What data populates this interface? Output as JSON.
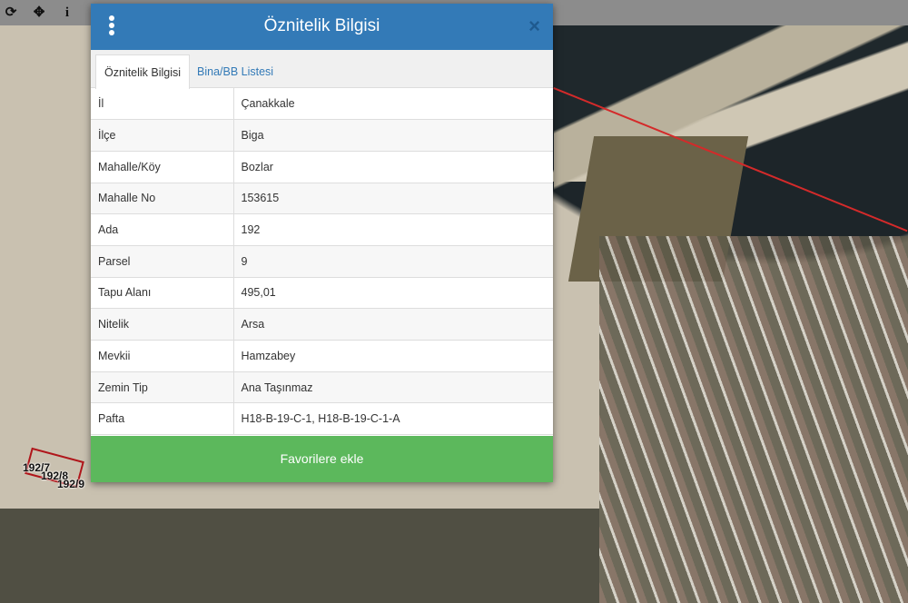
{
  "toolbar": {
    "items": [
      {
        "icon": "refresh-icon",
        "glyph": "⟳"
      },
      {
        "icon": "crosshair-icon",
        "glyph": "✥"
      },
      {
        "icon": "info-icon",
        "glyph": "i"
      }
    ]
  },
  "map": {
    "parcel_labels": [
      "192/7",
      "192/8",
      "192/9"
    ],
    "boundary_color": "#d42a2a"
  },
  "dialog": {
    "title": "Öznitelik Bilgisi",
    "close": "×",
    "tabs": [
      {
        "label": "Öznitelik Bilgisi",
        "active": true
      },
      {
        "label": "Bina/BB Listesi",
        "active": false
      }
    ],
    "rows": [
      {
        "key": "İl",
        "value": "Çanakkale"
      },
      {
        "key": "İlçe",
        "value": "Biga"
      },
      {
        "key": "Mahalle/Köy",
        "value": "Bozlar"
      },
      {
        "key": "Mahalle No",
        "value": "153615"
      },
      {
        "key": "Ada",
        "value": "192"
      },
      {
        "key": "Parsel",
        "value": "9"
      },
      {
        "key": "Tapu Alanı",
        "value": "495,01"
      },
      {
        "key": "Nitelik",
        "value": "Arsa"
      },
      {
        "key": "Mevkii",
        "value": "Hamzabey"
      },
      {
        "key": "Zemin Tip",
        "value": "Ana Taşınmaz"
      },
      {
        "key": "Pafta",
        "value": "H18-B-19-C-1, H18-B-19-C-1-A"
      }
    ],
    "favorite_button": "Favorilere ekle",
    "header_color": "#337ab7",
    "button_color": "#5cb85c"
  }
}
